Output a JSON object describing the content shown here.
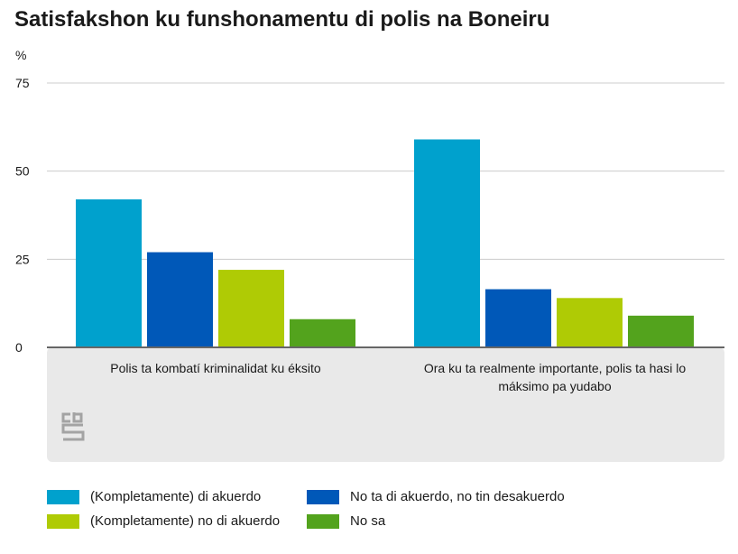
{
  "chart_data": {
    "type": "bar",
    "title": "Satisfakshon ku funshonamentu di polis na Boneiru",
    "ylabel": "%",
    "xlabel": "",
    "ylim": [
      0,
      75
    ],
    "yticks": [
      0,
      25,
      50,
      75
    ],
    "categories": [
      "Polis ta kombatí kriminalidat ku éksito",
      "Ora ku ta realmente importante, polis ta hasi lo máksimo pa yudabo"
    ],
    "series": [
      {
        "name": "(Kompletamente) di akuerdo",
        "color": "#00a1cd",
        "values": [
          42,
          59
        ]
      },
      {
        "name": "No ta di akuerdo, no tin desakuerdo",
        "color": "#0058b8",
        "values": [
          27,
          16.5
        ]
      },
      {
        "name": "(Kompletamente) no di akuerdo",
        "color": "#afcb05",
        "values": [
          22,
          14
        ]
      },
      {
        "name": "No sa",
        "color": "#53a31d",
        "values": [
          8,
          9
        ]
      }
    ],
    "grid": true,
    "legend_position": "bottom"
  },
  "colors": {
    "grid": "#cccccc",
    "axis": "#666666",
    "category_band": "#e9e9e9",
    "logo": "#a3a3a3"
  },
  "logo": {
    "text": "cbs"
  }
}
